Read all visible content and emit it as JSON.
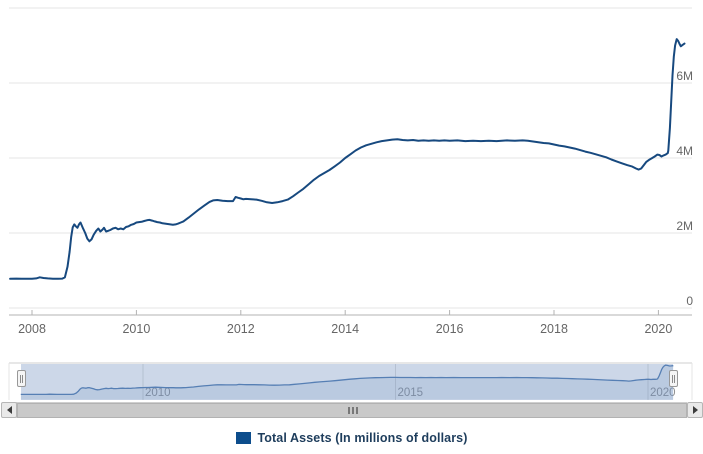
{
  "chart_data": {
    "type": "line",
    "title": "",
    "xlabel": "",
    "ylabel": "",
    "grid": true,
    "legend_position": "bottom-center",
    "xlim": [
      2007.56,
      2020.66
    ],
    "ylim": [
      0,
      8000000
    ],
    "x_ticks": [
      2008,
      2010,
      2012,
      2014,
      2016,
      2018,
      2020
    ],
    "y_ticks": [
      {
        "value": 0,
        "label": "0"
      },
      {
        "value": 2000000,
        "label": "2M"
      },
      {
        "value": 4000000,
        "label": "4M"
      },
      {
        "value": 6000000,
        "label": "6M"
      },
      {
        "value": 8000000,
        "label": ""
      }
    ],
    "series": [
      {
        "name": "Total Assets (In millions of dollars)",
        "color": "#17497f",
        "x_unit": "decimal_year",
        "y_unit": "millions of dollars",
        "points": [
          [
            2007.58,
            780000
          ],
          [
            2007.7,
            785000
          ],
          [
            2007.8,
            778000
          ],
          [
            2007.9,
            782000
          ],
          [
            2008.0,
            780000
          ],
          [
            2008.08,
            790000
          ],
          [
            2008.15,
            820000
          ],
          [
            2008.22,
            800000
          ],
          [
            2008.3,
            788000
          ],
          [
            2008.4,
            782000
          ],
          [
            2008.5,
            778000
          ],
          [
            2008.58,
            785000
          ],
          [
            2008.63,
            820000
          ],
          [
            2008.68,
            1100000
          ],
          [
            2008.72,
            1500000
          ],
          [
            2008.75,
            1900000
          ],
          [
            2008.78,
            2150000
          ],
          [
            2008.81,
            2230000
          ],
          [
            2008.84,
            2180000
          ],
          [
            2008.87,
            2140000
          ],
          [
            2008.9,
            2230000
          ],
          [
            2008.93,
            2280000
          ],
          [
            2008.97,
            2150000
          ],
          [
            2009.02,
            2000000
          ],
          [
            2009.06,
            1850000
          ],
          [
            2009.1,
            1780000
          ],
          [
            2009.14,
            1830000
          ],
          [
            2009.18,
            1950000
          ],
          [
            2009.23,
            2060000
          ],
          [
            2009.27,
            2120000
          ],
          [
            2009.31,
            2040000
          ],
          [
            2009.35,
            2090000
          ],
          [
            2009.38,
            2140000
          ],
          [
            2009.42,
            2040000
          ],
          [
            2009.46,
            2060000
          ],
          [
            2009.5,
            2080000
          ],
          [
            2009.55,
            2120000
          ],
          [
            2009.6,
            2140000
          ],
          [
            2009.65,
            2100000
          ],
          [
            2009.7,
            2120000
          ],
          [
            2009.75,
            2100000
          ],
          [
            2009.8,
            2160000
          ],
          [
            2009.85,
            2180000
          ],
          [
            2009.9,
            2220000
          ],
          [
            2009.95,
            2240000
          ],
          [
            2010.0,
            2280000
          ],
          [
            2010.05,
            2290000
          ],
          [
            2010.1,
            2300000
          ],
          [
            2010.15,
            2320000
          ],
          [
            2010.2,
            2340000
          ],
          [
            2010.25,
            2350000
          ],
          [
            2010.3,
            2330000
          ],
          [
            2010.35,
            2310000
          ],
          [
            2010.4,
            2290000
          ],
          [
            2010.45,
            2280000
          ],
          [
            2010.5,
            2260000
          ],
          [
            2010.55,
            2250000
          ],
          [
            2010.6,
            2240000
          ],
          [
            2010.65,
            2230000
          ],
          [
            2010.7,
            2220000
          ],
          [
            2010.75,
            2230000
          ],
          [
            2010.8,
            2250000
          ],
          [
            2010.85,
            2280000
          ],
          [
            2010.9,
            2310000
          ],
          [
            2011.0,
            2410000
          ],
          [
            2011.1,
            2520000
          ],
          [
            2011.2,
            2630000
          ],
          [
            2011.3,
            2730000
          ],
          [
            2011.4,
            2830000
          ],
          [
            2011.47,
            2870000
          ],
          [
            2011.55,
            2880000
          ],
          [
            2011.65,
            2860000
          ],
          [
            2011.75,
            2850000
          ],
          [
            2011.85,
            2850000
          ],
          [
            2011.9,
            2960000
          ],
          [
            2011.95,
            2940000
          ],
          [
            2012.0,
            2920000
          ],
          [
            2012.05,
            2900000
          ],
          [
            2012.1,
            2910000
          ],
          [
            2012.2,
            2900000
          ],
          [
            2012.3,
            2890000
          ],
          [
            2012.4,
            2860000
          ],
          [
            2012.5,
            2820000
          ],
          [
            2012.6,
            2800000
          ],
          [
            2012.7,
            2820000
          ],
          [
            2012.8,
            2850000
          ],
          [
            2012.9,
            2890000
          ],
          [
            2013.0,
            2980000
          ],
          [
            2013.1,
            3080000
          ],
          [
            2013.2,
            3180000
          ],
          [
            2013.3,
            3300000
          ],
          [
            2013.4,
            3420000
          ],
          [
            2013.5,
            3520000
          ],
          [
            2013.6,
            3600000
          ],
          [
            2013.7,
            3680000
          ],
          [
            2013.8,
            3780000
          ],
          [
            2013.9,
            3880000
          ],
          [
            2014.0,
            4000000
          ],
          [
            2014.1,
            4100000
          ],
          [
            2014.2,
            4200000
          ],
          [
            2014.3,
            4280000
          ],
          [
            2014.4,
            4340000
          ],
          [
            2014.5,
            4380000
          ],
          [
            2014.6,
            4420000
          ],
          [
            2014.7,
            4450000
          ],
          [
            2014.8,
            4470000
          ],
          [
            2014.9,
            4490000
          ],
          [
            2015.0,
            4500000
          ],
          [
            2015.1,
            4480000
          ],
          [
            2015.2,
            4470000
          ],
          [
            2015.3,
            4480000
          ],
          [
            2015.4,
            4460000
          ],
          [
            2015.5,
            4470000
          ],
          [
            2015.6,
            4460000
          ],
          [
            2015.7,
            4470000
          ],
          [
            2015.8,
            4460000
          ],
          [
            2015.9,
            4470000
          ],
          [
            2016.0,
            4460000
          ],
          [
            2016.15,
            4470000
          ],
          [
            2016.3,
            4450000
          ],
          [
            2016.45,
            4460000
          ],
          [
            2016.6,
            4450000
          ],
          [
            2016.75,
            4460000
          ],
          [
            2016.9,
            4450000
          ],
          [
            2017.0,
            4460000
          ],
          [
            2017.1,
            4470000
          ],
          [
            2017.25,
            4460000
          ],
          [
            2017.4,
            4470000
          ],
          [
            2017.5,
            4460000
          ],
          [
            2017.6,
            4440000
          ],
          [
            2017.7,
            4420000
          ],
          [
            2017.8,
            4400000
          ],
          [
            2017.9,
            4390000
          ],
          [
            2018.0,
            4360000
          ],
          [
            2018.1,
            4330000
          ],
          [
            2018.2,
            4310000
          ],
          [
            2018.3,
            4280000
          ],
          [
            2018.4,
            4250000
          ],
          [
            2018.5,
            4210000
          ],
          [
            2018.6,
            4170000
          ],
          [
            2018.7,
            4140000
          ],
          [
            2018.8,
            4100000
          ],
          [
            2018.9,
            4060000
          ],
          [
            2019.0,
            4020000
          ],
          [
            2019.1,
            3960000
          ],
          [
            2019.2,
            3910000
          ],
          [
            2019.3,
            3860000
          ],
          [
            2019.4,
            3810000
          ],
          [
            2019.5,
            3770000
          ],
          [
            2019.57,
            3720000
          ],
          [
            2019.62,
            3690000
          ],
          [
            2019.67,
            3720000
          ],
          [
            2019.72,
            3810000
          ],
          [
            2019.77,
            3900000
          ],
          [
            2019.82,
            3950000
          ],
          [
            2019.87,
            3990000
          ],
          [
            2019.93,
            4040000
          ],
          [
            2019.98,
            4090000
          ],
          [
            2020.02,
            4080000
          ],
          [
            2020.06,
            4040000
          ],
          [
            2020.1,
            4070000
          ],
          [
            2020.14,
            4090000
          ],
          [
            2020.18,
            4130000
          ],
          [
            2020.19,
            4200000
          ],
          [
            2020.22,
            4800000
          ],
          [
            2020.245,
            5500000
          ],
          [
            2020.27,
            6200000
          ],
          [
            2020.295,
            6700000
          ],
          [
            2020.32,
            7000000
          ],
          [
            2020.35,
            7170000
          ],
          [
            2020.38,
            7120000
          ],
          [
            2020.41,
            7030000
          ],
          [
            2020.43,
            6980000
          ],
          [
            2020.46,
            7010000
          ],
          [
            2020.5,
            7050000
          ]
        ]
      }
    ]
  },
  "navigator": {
    "labels": [
      {
        "year": 2010,
        "label": "2010"
      },
      {
        "year": 2015,
        "label": "2015"
      },
      {
        "year": 2020,
        "label": "2020"
      }
    ],
    "selected_range_full": true,
    "handle_icon": "drag-handle",
    "mask_color": "rgba(110,140,190,0.35)",
    "line_color": "#4a78b0"
  },
  "scrollbar": {
    "left_icon": "left-arrow",
    "right_icon": "right-arrow",
    "grip_icon": "grip-rivets"
  },
  "legend": {
    "items": [
      {
        "label": "Total Assets (In millions of dollars)",
        "color": "#0d4d8c"
      }
    ]
  },
  "colors": {
    "series_line": "#17497f",
    "grid_line": "#e4e4e4",
    "axis_line": "#b3b3b3",
    "axis_label": "#666666",
    "nav_label": "#919191",
    "legend_text": "#1e3d5c"
  }
}
